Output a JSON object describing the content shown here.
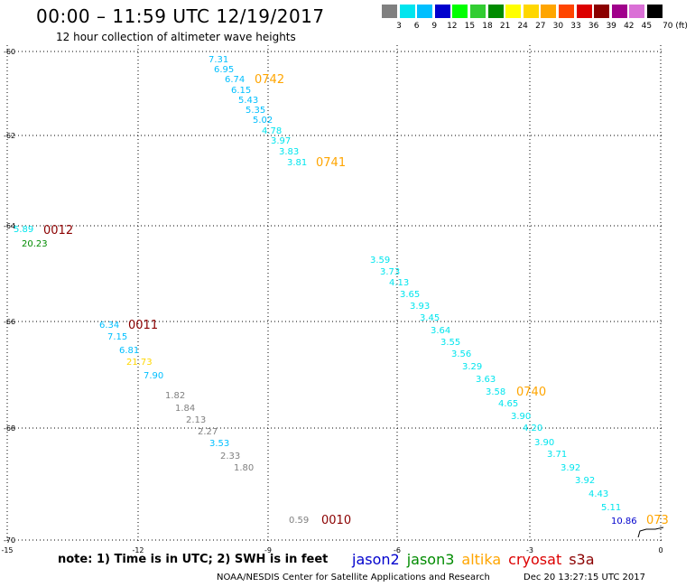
{
  "title": "00:00 – 11:59 UTC 12/19/2017",
  "subtitle": "12 hour collection of altimeter wave heights",
  "colorbar": {
    "labels": [
      "3",
      "6",
      "9",
      "12",
      "15",
      "18",
      "21",
      "24",
      "27",
      "30",
      "33",
      "36",
      "39",
      "42",
      "45",
      "70 (ft)"
    ],
    "colors": [
      "#808080",
      "#00e5ee",
      "#00bfff",
      "#0000cd",
      "#00ff00",
      "#32cd32",
      "#008b00",
      "#ffff00",
      "#ffd700",
      "#ffa500",
      "#ff4500",
      "#dc0000",
      "#8b0000",
      "#a0008b",
      "#da70d6",
      "#000000"
    ]
  },
  "axes": {
    "lat_ticks": [
      "-60",
      "-62",
      "-64",
      "-66",
      "-68",
      "-70"
    ],
    "lon_ticks": [
      "-15",
      "-12",
      "-9",
      "-6",
      "-3",
      "0"
    ]
  },
  "colors": {
    "gray": "#808080",
    "cyan": "#00e5ee",
    "lightblue": "#00bfff",
    "blue": "#0000cd",
    "darkgreen": "#008b00",
    "yellow": "#ffd700",
    "orange": "#ffa500",
    "darkred": "#8b0000"
  },
  "readings": [
    {
      "text": "7.31",
      "color": "lightblue"
    },
    {
      "text": "6.95",
      "color": "lightblue"
    },
    {
      "text": "6.74",
      "color": "lightblue"
    },
    {
      "text": "6.15",
      "color": "lightblue"
    },
    {
      "text": "5.43",
      "color": "lightblue"
    },
    {
      "text": "5.35",
      "color": "lightblue"
    },
    {
      "text": "5.02",
      "color": "lightblue"
    },
    {
      "text": "4.78",
      "color": "cyan"
    },
    {
      "text": "3.97",
      "color": "cyan"
    },
    {
      "text": "3.83",
      "color": "cyan"
    },
    {
      "text": "3.81",
      "color": "cyan"
    },
    {
      "text": "3.59",
      "color": "cyan"
    },
    {
      "text": "3.73",
      "color": "cyan"
    },
    {
      "text": "4.13",
      "color": "cyan"
    },
    {
      "text": "3.65",
      "color": "cyan"
    },
    {
      "text": "3.93",
      "color": "cyan"
    },
    {
      "text": "3.45",
      "color": "cyan"
    },
    {
      "text": "3.64",
      "color": "cyan"
    },
    {
      "text": "3.55",
      "color": "cyan"
    },
    {
      "text": "3.56",
      "color": "cyan"
    },
    {
      "text": "3.29",
      "color": "cyan"
    },
    {
      "text": "3.63",
      "color": "cyan"
    },
    {
      "text": "3.58",
      "color": "cyan"
    },
    {
      "text": "4.65",
      "color": "cyan"
    },
    {
      "text": "3.90",
      "color": "cyan"
    },
    {
      "text": "4.20",
      "color": "cyan"
    },
    {
      "text": "3.90",
      "color": "cyan"
    },
    {
      "text": "3.71",
      "color": "cyan"
    },
    {
      "text": "3.92",
      "color": "cyan"
    },
    {
      "text": "3.92",
      "color": "cyan"
    },
    {
      "text": "4.43",
      "color": "cyan"
    },
    {
      "text": "5.11",
      "color": "cyan"
    },
    {
      "text": "10.86",
      "color": "blue"
    },
    {
      "text": "5.89",
      "color": "cyan"
    },
    {
      "text": "20.23",
      "color": "darkgreen"
    },
    {
      "text": "6.34",
      "color": "lightblue"
    },
    {
      "text": "7.15",
      "color": "lightblue"
    },
    {
      "text": "6.81",
      "color": "lightblue"
    },
    {
      "text": "21.73",
      "color": "yellow"
    },
    {
      "text": "7.90",
      "color": "lightblue"
    },
    {
      "text": "1.82",
      "color": "gray"
    },
    {
      "text": "1.84",
      "color": "gray"
    },
    {
      "text": "2.13",
      "color": "gray"
    },
    {
      "text": "2.27",
      "color": "gray"
    },
    {
      "text": "3.53",
      "color": "lightblue"
    },
    {
      "text": "2.33",
      "color": "gray"
    },
    {
      "text": "1.80",
      "color": "gray"
    },
    {
      "text": "0.59",
      "color": "gray"
    }
  ],
  "pass_labels": [
    {
      "text": "0742",
      "color": "orange"
    },
    {
      "text": "0741",
      "color": "orange"
    },
    {
      "text": "0012",
      "color": "darkred"
    },
    {
      "text": "0011",
      "color": "darkred"
    },
    {
      "text": "0740",
      "color": "orange"
    },
    {
      "text": "0010",
      "color": "darkred"
    },
    {
      "text": "073",
      "color": "orange"
    }
  ],
  "note": "note: 1) Time is in UTC; 2) SWH is in feet",
  "satellites": [
    {
      "name": "jason2",
      "color": "#0000cd"
    },
    {
      "name": "jason3",
      "color": "#008b00"
    },
    {
      "name": "altika",
      "color": "#ffa500"
    },
    {
      "name": "cryosat",
      "color": "#dc0000"
    },
    {
      "name": "s3a",
      "color": "#8b0000"
    }
  ],
  "footer": "NOAA/NESDIS Center for Satellite Applications and Research",
  "footer_time": "Dec 20 13:27:15 UTC 2017"
}
